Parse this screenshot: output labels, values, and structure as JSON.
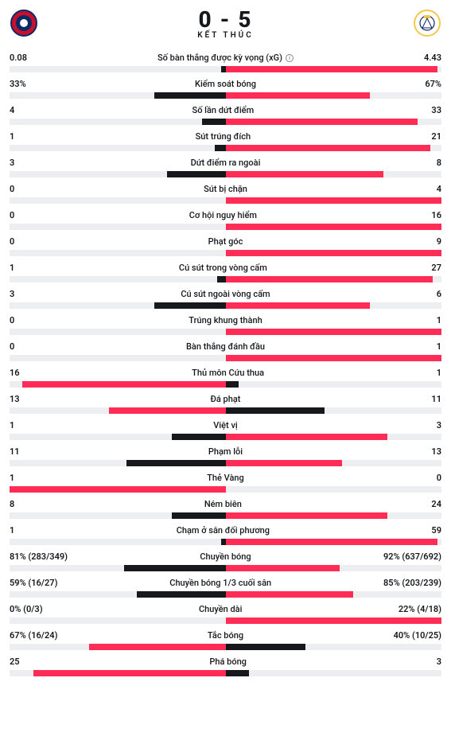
{
  "colors": {
    "home_bar": "#16181c",
    "away_bar": "#ff2d55",
    "track": "#eceef1",
    "text": "#16181c"
  },
  "header": {
    "score_home": "0",
    "score_away": "5",
    "sep": " - ",
    "status": "KẾT THÚC"
  },
  "stats": [
    {
      "label": "Số bàn thắng được kỳ vọng (xG)",
      "info": true,
      "home_display": "0.08",
      "away_display": "4.43",
      "home_pct": 2,
      "away_pct": 98
    },
    {
      "label": "Kiểm soát bóng",
      "home_display": "33%",
      "away_display": "67%",
      "home_pct": 33,
      "away_pct": 67
    },
    {
      "label": "Số lần dứt điểm",
      "home_display": "4",
      "away_display": "33",
      "home_pct": 11,
      "away_pct": 89
    },
    {
      "label": "Sút trúng đích",
      "home_display": "1",
      "away_display": "21",
      "home_pct": 5,
      "away_pct": 95
    },
    {
      "label": "Dứt điểm ra ngoài",
      "home_display": "3",
      "away_display": "8",
      "home_pct": 27,
      "away_pct": 73
    },
    {
      "label": "Sút bị chặn",
      "home_display": "0",
      "away_display": "4",
      "home_pct": 0,
      "away_pct": 100
    },
    {
      "label": "Cơ hội nguy hiểm",
      "home_display": "0",
      "away_display": "16",
      "home_pct": 0,
      "away_pct": 100
    },
    {
      "label": "Phạt góc",
      "home_display": "0",
      "away_display": "9",
      "home_pct": 0,
      "away_pct": 100
    },
    {
      "label": "Cú sút trong vòng cấm",
      "home_display": "1",
      "away_display": "27",
      "home_pct": 4,
      "away_pct": 96
    },
    {
      "label": "Cú sút ngoài vòng cấm",
      "home_display": "3",
      "away_display": "6",
      "home_pct": 33,
      "away_pct": 67
    },
    {
      "label": "Trúng khung thành",
      "home_display": "0",
      "away_display": "1",
      "home_pct": 0,
      "away_pct": 100
    },
    {
      "label": "Bàn thắng đánh đầu",
      "home_display": "0",
      "away_display": "1",
      "home_pct": 0,
      "away_pct": 100
    },
    {
      "label": "Thủ môn Cứu thua",
      "home_display": "16",
      "away_display": "1",
      "home_pct": 94,
      "away_pct": 6
    },
    {
      "label": "Đá phạt",
      "home_display": "13",
      "away_display": "11",
      "home_pct": 54,
      "away_pct": 46
    },
    {
      "label": "Việt vị",
      "home_display": "1",
      "away_display": "3",
      "home_pct": 25,
      "away_pct": 75
    },
    {
      "label": "Phạm lỗi",
      "home_display": "11",
      "away_display": "13",
      "home_pct": 46,
      "away_pct": 54
    },
    {
      "label": "Thẻ Vàng",
      "home_display": "1",
      "away_display": "0",
      "home_pct": 100,
      "away_pct": 0
    },
    {
      "label": "Ném biên",
      "home_display": "8",
      "away_display": "24",
      "home_pct": 25,
      "away_pct": 75
    },
    {
      "label": "Chạm ở sân đối phương",
      "home_display": "1",
      "away_display": "59",
      "home_pct": 2,
      "away_pct": 98
    },
    {
      "label": "Chuyền bóng",
      "home_display": "81% (283/349)",
      "away_display": "92% (637/692)",
      "home_pct": 47,
      "away_pct": 53
    },
    {
      "label": "Chuyền bóng 1/3 cuối sân",
      "home_display": "59% (16/27)",
      "away_display": "85% (203/239)",
      "home_pct": 41,
      "away_pct": 59
    },
    {
      "label": "Chuyền dài",
      "home_display": "0% (0/3)",
      "away_display": "22% (4/18)",
      "home_pct": 0,
      "away_pct": 100
    },
    {
      "label": "Tắc bóng",
      "home_display": "67% (16/24)",
      "away_display": "40% (10/25)",
      "home_pct": 63,
      "away_pct": 37
    },
    {
      "label": "Phá bóng",
      "home_display": "25",
      "away_display": "3",
      "home_pct": 89,
      "away_pct": 11
    }
  ]
}
